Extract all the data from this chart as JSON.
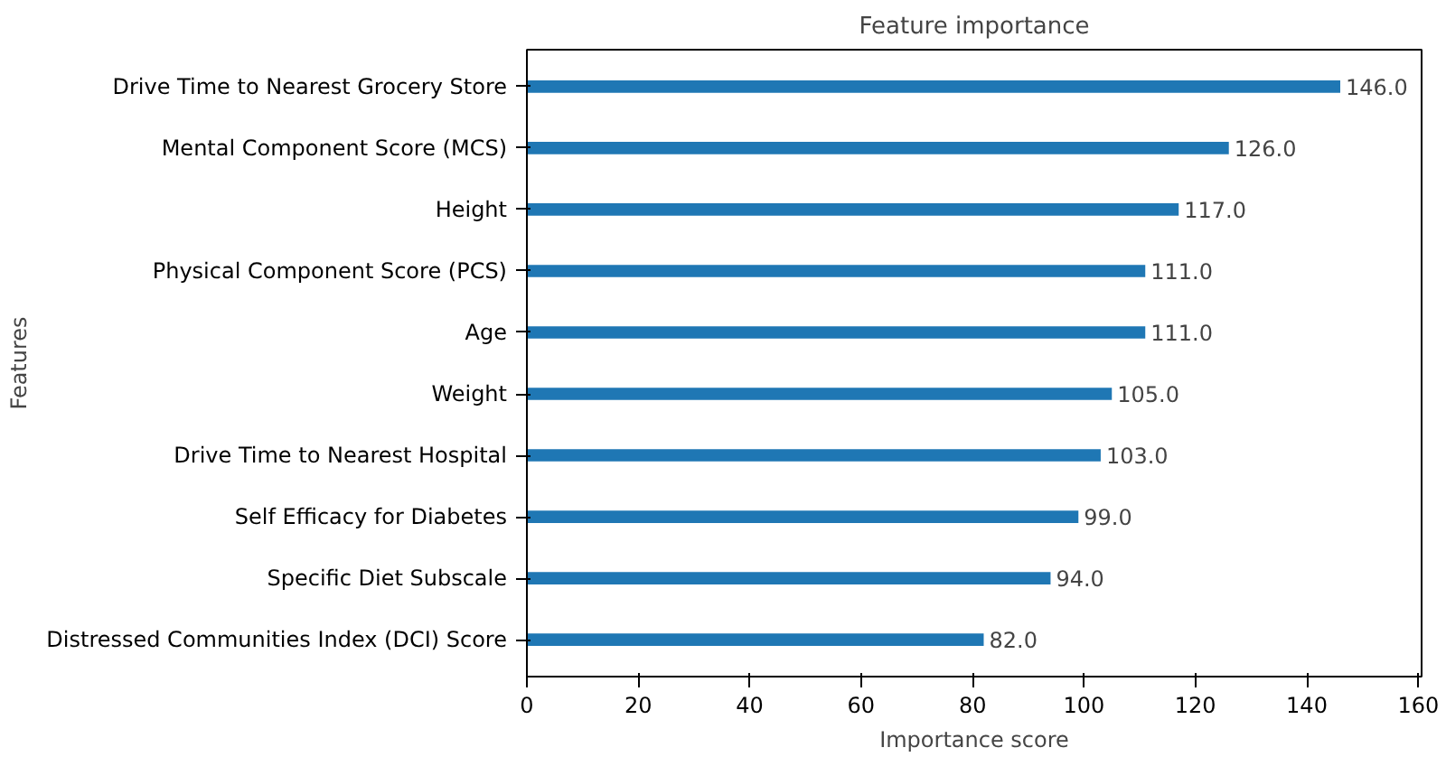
{
  "chart_data": {
    "type": "bar",
    "orientation": "horizontal",
    "title": "Feature importance",
    "xlabel": "Importance score",
    "ylabel": "Features",
    "categories": [
      "Drive Time to Nearest Grocery Store",
      "Mental Component Score (MCS)",
      "Height",
      "Physical Component Score (PCS)",
      "Age",
      "Weight",
      "Drive Time to Nearest Hospital",
      "Self Efficacy for Diabetes",
      "Specific Diet Subscale",
      "Distressed Communities Index (DCI) Score"
    ],
    "values": [
      146,
      126,
      117,
      111,
      111,
      105,
      103,
      99,
      94,
      82
    ],
    "value_labels": [
      "146.0",
      "126.0",
      "117.0",
      "111.0",
      "111.0",
      "105.0",
      "103.0",
      "99.0",
      "94.0",
      "82.0"
    ],
    "color": "#1f77b4",
    "xlim": [
      0,
      160.6
    ],
    "xticks": [
      0,
      20,
      40,
      60,
      80,
      100,
      120,
      140,
      160
    ],
    "grid": false
  }
}
